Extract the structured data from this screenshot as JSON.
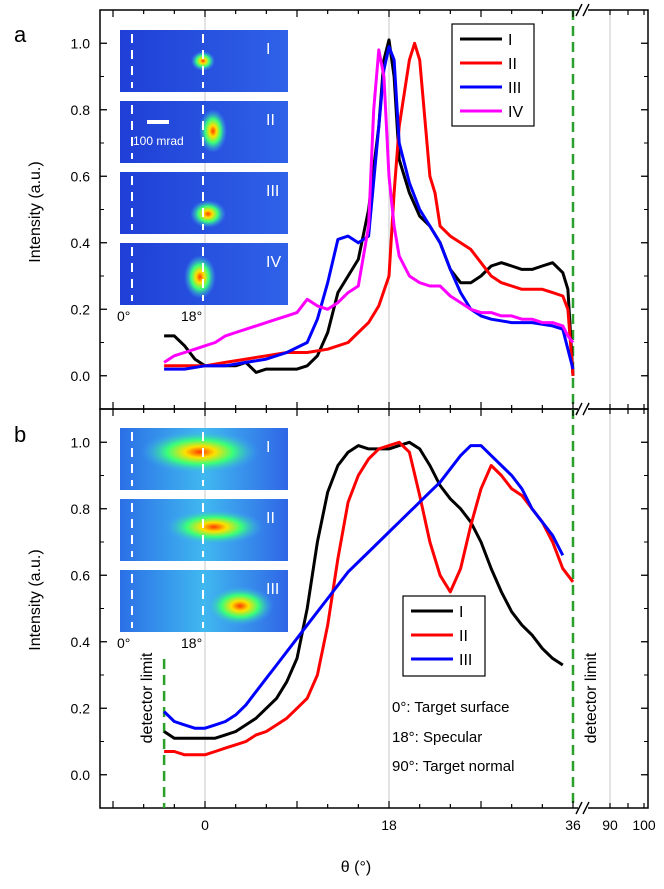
{
  "figure": {
    "xlabel": "θ (°)",
    "x_ticks": [
      "0",
      "18",
      "36",
      "90",
      "100"
    ],
    "colors": {
      "I": "#000000",
      "II": "#ff0000",
      "III": "#0000ff",
      "IV": "#ff00ff",
      "dashed": "#2ca02c",
      "gridline": "#c8c8c8"
    }
  },
  "chart_data": [
    {
      "type": "line",
      "panel_label": "a",
      "ylabel": "Intensity (a.u.)",
      "ylim": [
        -0.1,
        1.1
      ],
      "y_ticks": [
        "0.0",
        "0.2",
        "0.4",
        "0.6",
        "0.8",
        "1.0"
      ],
      "xlim": [
        -10,
        37
      ],
      "x_break": {
        "after": 36,
        "resumes": [
          90,
          100
        ]
      },
      "legend": {
        "position": "top-right",
        "entries": [
          "I",
          "II",
          "III",
          "IV"
        ]
      },
      "vertical_lines": [
        {
          "x": 0,
          "style": "gray"
        },
        {
          "x": 18,
          "style": "gray"
        },
        {
          "x": 36,
          "style": "green-dashed"
        }
      ],
      "inset": {
        "panels": [
          "I",
          "II",
          "III",
          "IV"
        ],
        "scale_bar_label": "100 mrad",
        "marker_labels": [
          "0°",
          "18°"
        ]
      },
      "series": [
        {
          "name": "I",
          "x": [
            -4,
            -3,
            -2,
            -1,
            0,
            1,
            2,
            3,
            4,
            5,
            6,
            7,
            8,
            9,
            10,
            11,
            12,
            13,
            14,
            15,
            16,
            17,
            17.5,
            18,
            18.5,
            19,
            20,
            21,
            22,
            23,
            24,
            25,
            26,
            27,
            28,
            29,
            30,
            31,
            32,
            33,
            34,
            35,
            35.5,
            36
          ],
          "y": [
            0.12,
            0.12,
            0.09,
            0.05,
            0.03,
            0.03,
            0.03,
            0.03,
            0.04,
            0.01,
            0.02,
            0.02,
            0.02,
            0.02,
            0.03,
            0.06,
            0.13,
            0.25,
            0.3,
            0.35,
            0.5,
            0.75,
            0.95,
            1.01,
            0.9,
            0.65,
            0.55,
            0.48,
            0.45,
            0.4,
            0.32,
            0.28,
            0.28,
            0.3,
            0.33,
            0.34,
            0.33,
            0.32,
            0.32,
            0.33,
            0.34,
            0.31,
            0.26,
            0.0
          ]
        },
        {
          "name": "II",
          "x": [
            -4,
            -2,
            0,
            2,
            4,
            6,
            8,
            10,
            12,
            14,
            15,
            16,
            17,
            18,
            18.5,
            19,
            20,
            20.5,
            21,
            22,
            22.5,
            23,
            24,
            25,
            26,
            27,
            28,
            29,
            30,
            31,
            32,
            33,
            34,
            35,
            35.5,
            36
          ],
          "y": [
            0.03,
            0.03,
            0.03,
            0.04,
            0.05,
            0.06,
            0.07,
            0.07,
            0.08,
            0.1,
            0.13,
            0.16,
            0.21,
            0.3,
            0.55,
            0.75,
            0.95,
            1.0,
            0.95,
            0.6,
            0.55,
            0.45,
            0.42,
            0.4,
            0.38,
            0.34,
            0.3,
            0.28,
            0.27,
            0.26,
            0.26,
            0.26,
            0.25,
            0.24,
            0.2,
            0.0
          ]
        },
        {
          "name": "III",
          "x": [
            -4,
            -2,
            0,
            2,
            4,
            6,
            8,
            10,
            11,
            12,
            13,
            14,
            15,
            16,
            17,
            17.5,
            18,
            18.5,
            19,
            20,
            21,
            22,
            23,
            24,
            25,
            26,
            27,
            28,
            30,
            32,
            34,
            35,
            35.5,
            36
          ],
          "y": [
            0.02,
            0.02,
            0.03,
            0.03,
            0.04,
            0.05,
            0.07,
            0.1,
            0.17,
            0.28,
            0.41,
            0.42,
            0.4,
            0.42,
            0.75,
            0.92,
            0.99,
            0.95,
            0.7,
            0.58,
            0.5,
            0.45,
            0.4,
            0.32,
            0.25,
            0.2,
            0.18,
            0.17,
            0.16,
            0.16,
            0.15,
            0.14,
            0.08,
            0.02
          ]
        },
        {
          "name": "IV",
          "x": [
            -4,
            -3,
            -2,
            -1,
            0,
            1,
            2,
            3,
            4,
            5,
            6,
            7,
            8,
            9,
            10,
            11,
            12,
            13,
            14,
            15,
            16,
            16.5,
            17,
            17.5,
            18,
            18.5,
            19,
            20,
            21,
            22,
            23,
            24,
            25,
            26,
            27,
            28,
            29,
            30,
            31,
            32,
            33,
            34,
            35,
            35.5,
            36
          ],
          "y": [
            0.04,
            0.06,
            0.07,
            0.08,
            0.09,
            0.1,
            0.12,
            0.13,
            0.14,
            0.15,
            0.16,
            0.17,
            0.18,
            0.19,
            0.23,
            0.21,
            0.2,
            0.22,
            0.25,
            0.27,
            0.45,
            0.8,
            0.98,
            0.9,
            0.6,
            0.45,
            0.36,
            0.3,
            0.28,
            0.27,
            0.27,
            0.24,
            0.22,
            0.2,
            0.19,
            0.19,
            0.18,
            0.18,
            0.17,
            0.17,
            0.16,
            0.16,
            0.15,
            0.12,
            0.1
          ]
        }
      ]
    },
    {
      "type": "line",
      "panel_label": "b",
      "ylabel": "Intensity (a.u.)",
      "ylim": [
        -0.1,
        1.1
      ],
      "y_ticks": [
        "0.0",
        "0.2",
        "0.4",
        "0.6",
        "0.8",
        "1.0"
      ],
      "xlim": [
        -10,
        37
      ],
      "x_break": {
        "after": 36,
        "resumes": [
          90,
          100
        ]
      },
      "legend": {
        "position": "bottom-center",
        "entries": [
          "I",
          "II",
          "III"
        ]
      },
      "vertical_lines": [
        {
          "x": -4,
          "style": "green-dashed"
        },
        {
          "x": 0,
          "style": "gray"
        },
        {
          "x": 18,
          "style": "gray"
        },
        {
          "x": 36,
          "style": "green-dashed"
        }
      ],
      "annotations": [
        "detector limit",
        "detector limit",
        "0°: Target surface",
        "18°: Specular",
        "90°: Target normal"
      ],
      "inset": {
        "panels": [
          "I",
          "II",
          "III"
        ],
        "marker_labels": [
          "0°",
          "18°"
        ]
      },
      "series": [
        {
          "name": "I",
          "x": [
            -4,
            -3,
            -2,
            -1,
            0,
            1,
            2,
            3,
            4,
            5,
            6,
            7,
            8,
            9,
            10,
            11,
            12,
            13,
            14,
            15,
            16,
            17,
            18,
            19,
            20,
            21,
            22,
            23,
            24,
            25,
            26,
            27,
            28,
            29,
            30,
            31,
            32,
            33,
            34,
            35
          ],
          "y": [
            0.13,
            0.11,
            0.11,
            0.11,
            0.11,
            0.11,
            0.12,
            0.13,
            0.15,
            0.17,
            0.2,
            0.23,
            0.28,
            0.35,
            0.5,
            0.7,
            0.85,
            0.93,
            0.97,
            0.99,
            0.98,
            0.98,
            0.98,
            0.99,
            1.0,
            0.98,
            0.93,
            0.87,
            0.83,
            0.8,
            0.76,
            0.7,
            0.62,
            0.55,
            0.49,
            0.45,
            0.42,
            0.38,
            0.35,
            0.33
          ]
        },
        {
          "name": "II",
          "x": [
            -4,
            -3,
            -2,
            -1,
            0,
            1,
            2,
            3,
            4,
            5,
            6,
            7,
            8,
            9,
            10,
            11,
            12,
            13,
            14,
            15,
            16,
            17,
            18,
            19,
            20,
            21,
            22,
            23,
            24,
            25,
            26,
            27,
            28,
            29,
            30,
            31,
            32,
            33,
            34,
            35,
            36
          ],
          "y": [
            0.07,
            0.07,
            0.06,
            0.06,
            0.06,
            0.07,
            0.08,
            0.09,
            0.1,
            0.12,
            0.13,
            0.15,
            0.17,
            0.2,
            0.23,
            0.3,
            0.45,
            0.65,
            0.82,
            0.9,
            0.95,
            0.98,
            0.99,
            1.0,
            0.97,
            0.84,
            0.7,
            0.6,
            0.55,
            0.62,
            0.75,
            0.86,
            0.93,
            0.9,
            0.86,
            0.84,
            0.8,
            0.76,
            0.7,
            0.62,
            0.58
          ]
        },
        {
          "name": "III",
          "x": [
            -4,
            -3,
            -2,
            -1,
            0,
            1,
            2,
            3,
            4,
            5,
            6,
            7,
            8,
            9,
            10,
            11,
            12,
            13,
            14,
            15,
            16,
            17,
            18,
            19,
            20,
            21,
            22,
            23,
            24,
            25,
            26,
            27,
            28,
            29,
            30,
            31,
            32,
            33,
            34,
            35
          ],
          "y": [
            0.19,
            0.16,
            0.15,
            0.14,
            0.14,
            0.15,
            0.16,
            0.18,
            0.21,
            0.25,
            0.29,
            0.33,
            0.37,
            0.41,
            0.45,
            0.49,
            0.53,
            0.57,
            0.61,
            0.64,
            0.67,
            0.7,
            0.73,
            0.76,
            0.79,
            0.82,
            0.85,
            0.88,
            0.92,
            0.96,
            0.99,
            0.99,
            0.96,
            0.93,
            0.9,
            0.86,
            0.8,
            0.76,
            0.72,
            0.66
          ]
        }
      ]
    }
  ]
}
